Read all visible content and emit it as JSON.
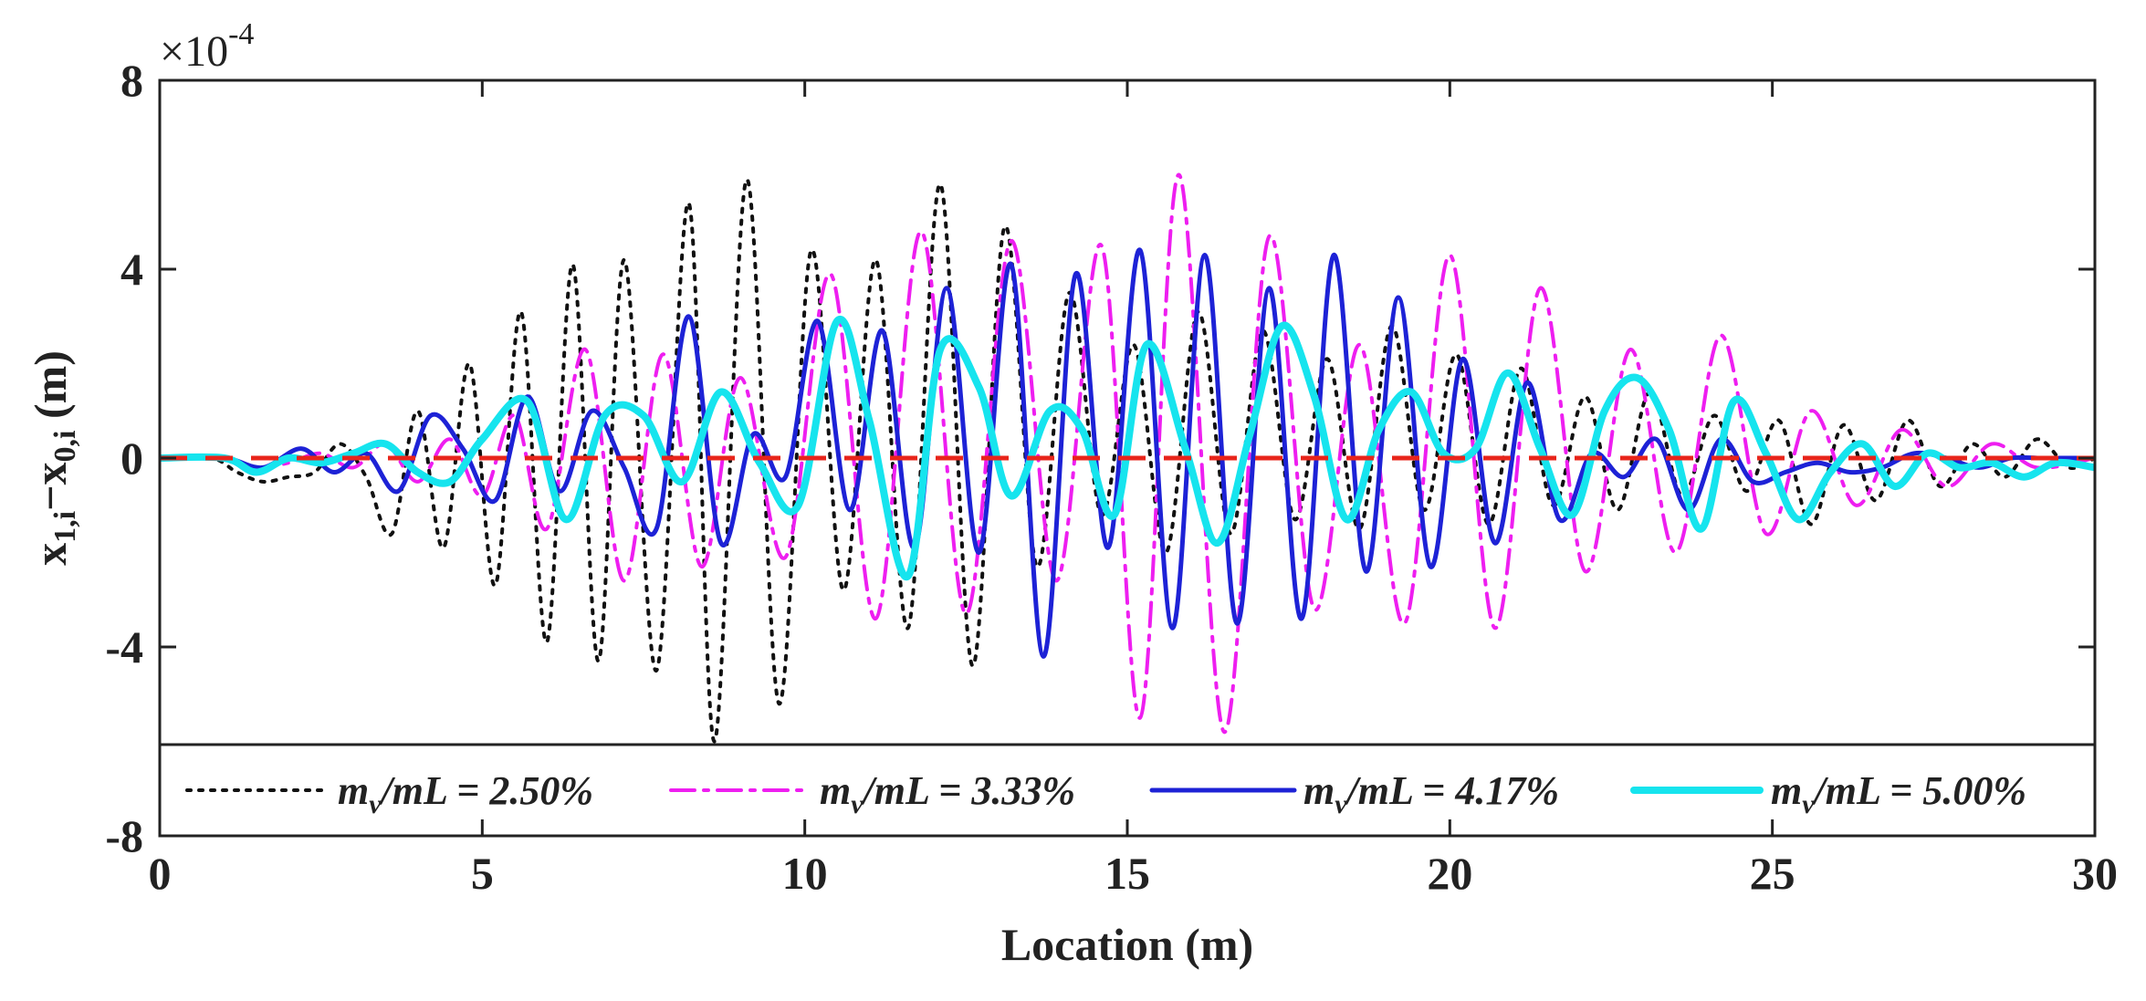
{
  "chart_data": {
    "type": "line",
    "title": "",
    "xlabel": "Location (m)",
    "ylabel": "x₁,ᵢ−x₀,ᵢ (m)",
    "ylabel_parts": {
      "a": "x",
      "a_sub": "1,i",
      "minus": "−x",
      "b_sub": "0,i",
      "unit": " (m)"
    },
    "exponent_label": "×10",
    "exponent_power": "-4",
    "xlim": [
      0,
      30
    ],
    "ylim": [
      -8,
      8
    ],
    "xticks": [
      "0",
      "5",
      "10",
      "15",
      "20",
      "25",
      "30"
    ],
    "yticks": [
      "-8",
      "-4",
      "0",
      "4",
      "8"
    ],
    "grid": false,
    "legend_position": "bottom inside",
    "reference_line": {
      "y": 0,
      "color": "#e8251b",
      "style": "dashed"
    },
    "series": [
      {
        "name": "m_v/mL = 2.50%",
        "legend_var": "m",
        "legend_sub": "v",
        "legend_rest": "/mL = 2.50%",
        "color": "#111111",
        "style": "dotted",
        "x": [
          0,
          0.8,
          1.2,
          1.6,
          2.0,
          2.4,
          2.8,
          3.2,
          3.6,
          4.0,
          4.4,
          4.8,
          5.2,
          5.6,
          6.0,
          6.4,
          6.8,
          7.2,
          7.7,
          8.2,
          8.6,
          9.1,
          9.6,
          10.1,
          10.6,
          11.1,
          11.6,
          12.1,
          12.6,
          13.1,
          13.6,
          14.1,
          14.6,
          15.1,
          15.6,
          16.1,
          16.6,
          17.1,
          17.6,
          18.1,
          18.6,
          19.1,
          19.6,
          20.1,
          20.6,
          21.1,
          21.6,
          22.1,
          22.6,
          23.1,
          23.6,
          24.1,
          24.6,
          25.1,
          25.6,
          26.1,
          26.6,
          27.1,
          27.6,
          28.1,
          28.6,
          29.1,
          29.6,
          30
        ],
        "y": [
          0,
          0,
          -0.3,
          -0.5,
          -0.4,
          -0.3,
          0.3,
          -0.4,
          -1.6,
          1.0,
          -1.9,
          2.0,
          -2.7,
          3.1,
          -3.9,
          4.1,
          -4.3,
          4.2,
          -4.5,
          5.4,
          -6.0,
          5.9,
          -5.2,
          4.4,
          -2.8,
          4.2,
          -3.6,
          5.8,
          -4.4,
          4.9,
          -2.3,
          3.5,
          -1.2,
          2.4,
          -2.0,
          3.1,
          -1.6,
          2.7,
          -1.3,
          2.1,
          -1.5,
          2.8,
          -1.1,
          2.2,
          -1.4,
          1.9,
          -1.0,
          1.3,
          -1.1,
          1.4,
          -0.8,
          0.9,
          -0.7,
          0.8,
          -1.4,
          0.7,
          -0.9,
          0.8,
          -0.6,
          0.3,
          -0.4,
          0.4,
          -0.2,
          0
        ]
      },
      {
        "name": "m_v/mL = 3.33%",
        "legend_var": "m",
        "legend_sub": "v",
        "legend_rest": "/mL = 3.33%",
        "color": "#ee1ef0",
        "style": "dashdot",
        "x": [
          0,
          1.0,
          1.5,
          2.0,
          2.5,
          3.0,
          3.5,
          4.0,
          4.5,
          5.0,
          5.5,
          6.0,
          6.6,
          7.2,
          7.8,
          8.4,
          9.0,
          9.7,
          10.4,
          11.1,
          11.8,
          12.5,
          13.2,
          13.9,
          14.6,
          15.2,
          15.8,
          16.5,
          17.2,
          17.9,
          18.6,
          19.3,
          20.0,
          20.7,
          21.4,
          22.1,
          22.8,
          23.5,
          24.2,
          24.9,
          25.6,
          26.3,
          27.0,
          27.7,
          28.4,
          29.1,
          30
        ],
        "y": [
          0,
          0,
          -0.2,
          -0.1,
          0.1,
          -0.2,
          0.3,
          -0.5,
          0.4,
          -0.8,
          0.9,
          -1.5,
          2.3,
          -2.6,
          2.2,
          -2.3,
          1.7,
          -2.1,
          3.9,
          -3.4,
          4.8,
          -3.3,
          4.6,
          -2.6,
          4.5,
          -5.5,
          6.0,
          -5.8,
          4.7,
          -3.2,
          2.4,
          -3.5,
          4.3,
          -3.6,
          3.6,
          -2.4,
          2.3,
          -2.0,
          2.6,
          -1.6,
          1.0,
          -1.0,
          0.6,
          -0.6,
          0.3,
          -0.2,
          0
        ]
      },
      {
        "name": "m_v/mL = 4.17%",
        "legend_var": "m",
        "legend_sub": "v",
        "legend_rest": "/mL = 4.17%",
        "color": "#1d22d6",
        "style": "solid",
        "x": [
          0,
          1.0,
          1.6,
          2.2,
          2.7,
          3.2,
          3.7,
          4.2,
          4.7,
          5.2,
          5.7,
          6.2,
          6.7,
          7.2,
          7.7,
          8.2,
          8.7,
          9.2,
          9.7,
          10.2,
          10.7,
          11.2,
          11.7,
          12.2,
          12.7,
          13.2,
          13.7,
          14.2,
          14.7,
          15.2,
          15.7,
          16.2,
          16.7,
          17.2,
          17.7,
          18.2,
          18.7,
          19.2,
          19.7,
          20.2,
          20.7,
          21.2,
          21.7,
          22.2,
          22.7,
          23.2,
          23.7,
          24.2,
          24.7,
          25.2,
          25.7,
          26.2,
          26.7,
          27.2,
          27.7,
          28.2,
          28.7,
          29.2,
          30
        ],
        "y": [
          0,
          0,
          -0.2,
          0.2,
          -0.3,
          0.1,
          -0.7,
          0.9,
          0.2,
          -0.9,
          1.3,
          -0.7,
          1.0,
          -0.2,
          -1.5,
          3.0,
          -1.8,
          0.5,
          -0.4,
          2.9,
          -1.1,
          2.7,
          -1.9,
          3.6,
          -2.0,
          4.1,
          -4.2,
          3.9,
          -1.9,
          4.4,
          -3.6,
          4.3,
          -3.5,
          3.6,
          -3.4,
          4.3,
          -2.4,
          3.4,
          -2.3,
          2.1,
          -1.8,
          1.6,
          -1.3,
          0.1,
          -0.4,
          0.4,
          -1.1,
          0.4,
          -0.5,
          -0.3,
          -0.1,
          -0.3,
          -0.2,
          0.1,
          0,
          -0.2,
          0,
          0,
          0
        ]
      },
      {
        "name": "m_v/mL = 5.00%",
        "legend_var": "m",
        "legend_sub": "v",
        "legend_rest": "/mL = 5.00%",
        "color": "#16e4ee",
        "style": "solid",
        "x": [
          0,
          1.0,
          1.5,
          2.0,
          2.5,
          3.0,
          3.5,
          4.0,
          4.5,
          5.0,
          5.7,
          6.3,
          6.9,
          7.5,
          8.1,
          8.7,
          9.3,
          9.9,
          10.5,
          11.0,
          11.6,
          12.1,
          12.7,
          13.2,
          13.8,
          14.3,
          14.8,
          15.3,
          15.9,
          16.4,
          16.9,
          17.4,
          17.9,
          18.4,
          18.9,
          19.4,
          19.9,
          20.4,
          20.9,
          21.4,
          21.9,
          22.4,
          22.9,
          23.4,
          23.9,
          24.4,
          24.9,
          25.4,
          25.9,
          26.4,
          26.9,
          27.4,
          27.9,
          28.4,
          28.9,
          29.4,
          30
        ],
        "y": [
          0,
          0,
          -0.3,
          0,
          -0.1,
          0.1,
          0.3,
          -0.3,
          -0.5,
          0.4,
          1.2,
          -1.3,
          0.9,
          0.9,
          -0.5,
          1.4,
          -0.1,
          -1.0,
          2.9,
          0.8,
          -2.5,
          2.3,
          1.5,
          -0.8,
          1.0,
          0.6,
          -1.2,
          2.4,
          0.2,
          -1.8,
          0.5,
          2.8,
          1.3,
          -1.3,
          0.6,
          1.4,
          0.1,
          0.2,
          1.8,
          0.2,
          -1.2,
          1.0,
          1.7,
          0.6,
          -1.5,
          1.2,
          0.1,
          -1.3,
          -0.3,
          0.3,
          -0.6,
          0.1,
          -0.2,
          -0.1,
          -0.4,
          -0.1,
          -0.2
        ]
      }
    ]
  }
}
